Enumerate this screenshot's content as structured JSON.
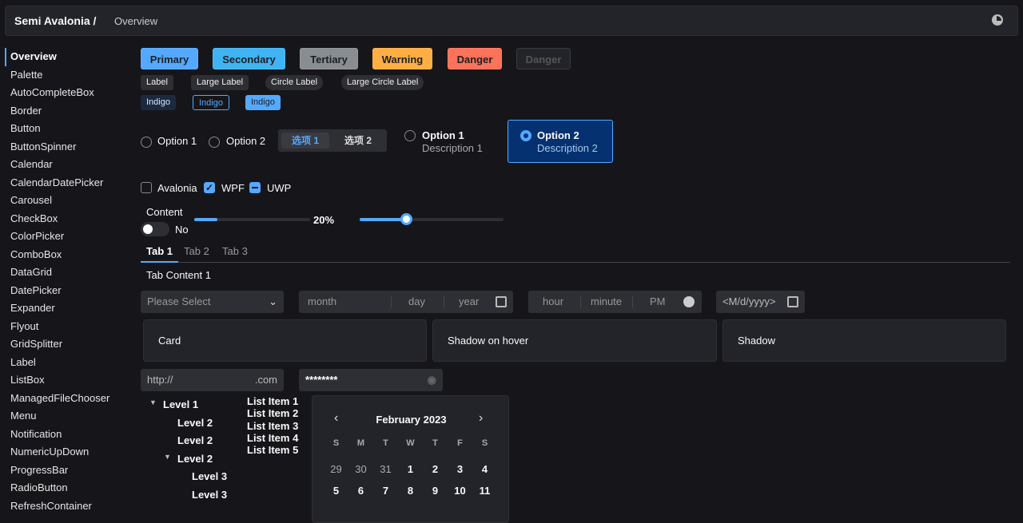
{
  "header": {
    "title": "Semi Avalonia /",
    "breadcrumb": "Overview",
    "theme_icon": "moon-icon"
  },
  "sidebar": {
    "items": [
      "Overview",
      "Palette",
      "AutoCompleteBox",
      "Border",
      "Button",
      "ButtonSpinner",
      "Calendar",
      "CalendarDatePicker",
      "Carousel",
      "CheckBox",
      "ColorPicker",
      "ComboBox",
      "DataGrid",
      "DatePicker",
      "Expander",
      "Flyout",
      "GridSplitter",
      "Label",
      "ListBox",
      "ManagedFileChooser",
      "Menu",
      "Notification",
      "NumericUpDown",
      "ProgressBar",
      "RadioButton",
      "RefreshContainer"
    ],
    "active": "Overview"
  },
  "buttons": [
    {
      "label": "Primary",
      "color": "#54a9ff"
    },
    {
      "label": "Secondary",
      "color": "#40b4f3"
    },
    {
      "label": "Tertiary",
      "color": "#888d92"
    },
    {
      "label": "Warning",
      "color": "#ffae43"
    },
    {
      "label": "Danger",
      "color": "#fc725a"
    },
    {
      "label": "Danger",
      "color": "#232429",
      "disabled": true
    }
  ],
  "labels": [
    "Label",
    "Large Label",
    "Circle Label",
    "Large Circle Label"
  ],
  "indigo_tags": [
    "Indigo",
    "Indigo",
    "Indigo"
  ],
  "radios": {
    "option1": "Option 1",
    "option2": "Option 2"
  },
  "segmented": {
    "items": [
      "选项 1",
      "选项 2"
    ],
    "selected": 0
  },
  "radio_cards": [
    {
      "title": "Option 1",
      "desc": "Description 1",
      "checked": false
    },
    {
      "title": "Option 2",
      "desc": "Description 2",
      "checked": true
    }
  ],
  "checkboxes": [
    {
      "label": "Avalonia",
      "state": "unchecked"
    },
    {
      "label": "WPF",
      "state": "checked"
    },
    {
      "label": "UWP",
      "state": "indeterminate"
    }
  ],
  "toggle": {
    "header": "Content",
    "state_label": "No",
    "on": false
  },
  "progress": {
    "value": 20,
    "label": "20%"
  },
  "slider": {
    "value": 32
  },
  "tabs": {
    "items": [
      "Tab 1",
      "Tab 2",
      "Tab 3"
    ],
    "selected": 0,
    "content": "Tab Content 1"
  },
  "combo": {
    "placeholder": "Please Select"
  },
  "date_picker": {
    "month": "month",
    "day": "day",
    "year": "year"
  },
  "time_picker": {
    "hour": "hour",
    "minute": "minute",
    "ampm": "PM"
  },
  "calendar_date_picker": {
    "placeholder": "<M/d/yyyy>"
  },
  "cards": [
    "Card",
    "Shadow on hover",
    "Shadow"
  ],
  "url_input": {
    "prefix": "http://",
    "suffix": ".com"
  },
  "password": {
    "value": "********"
  },
  "tree": [
    {
      "label": "Level 1",
      "level": 1,
      "expanded": true
    },
    {
      "label": "Level 2",
      "level": 2
    },
    {
      "label": "Level 2",
      "level": 2
    },
    {
      "label": "Level 2",
      "level": 2,
      "expanded": true
    },
    {
      "label": "Level 3",
      "level": 3
    },
    {
      "label": "Level 3",
      "level": 3
    }
  ],
  "list": [
    "List Item 1",
    "List Item 2",
    "List Item 3",
    "List Item 4",
    "List Item 5"
  ],
  "calendar": {
    "title": "February 2023",
    "weekdays": [
      "S",
      "M",
      "T",
      "W",
      "T",
      "F",
      "S"
    ],
    "rows": [
      [
        "29",
        "30",
        "31",
        "1",
        "2",
        "3",
        "4"
      ],
      [
        "5",
        "6",
        "7",
        "8",
        "9",
        "10",
        "11"
      ]
    ]
  }
}
